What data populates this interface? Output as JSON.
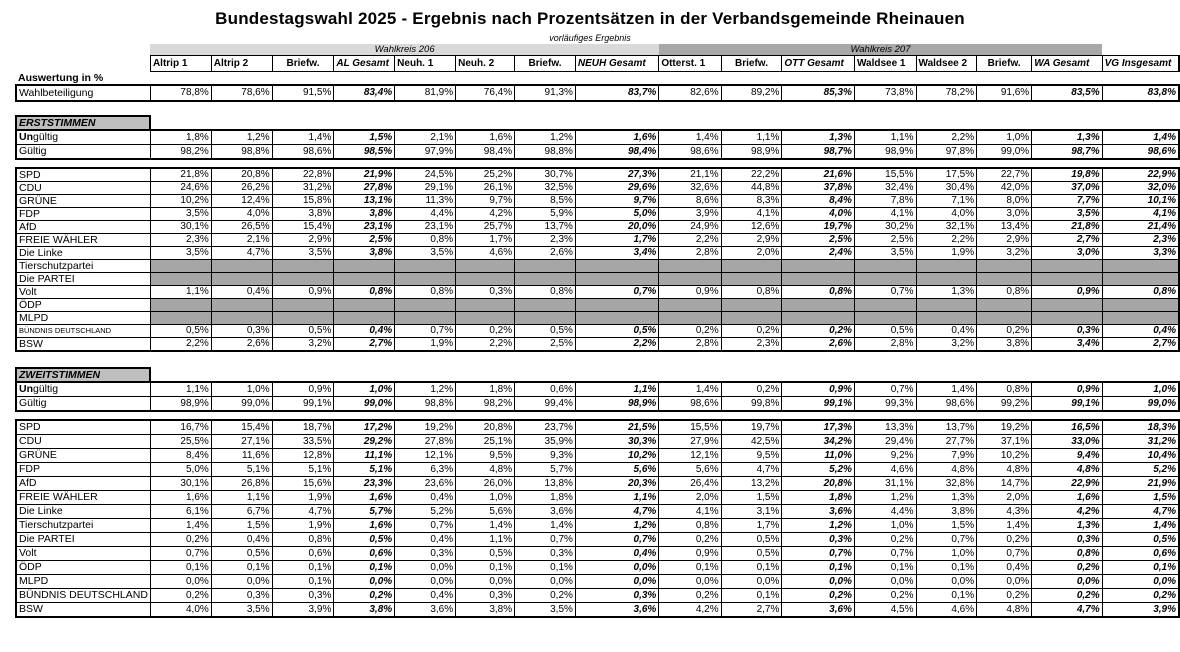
{
  "title": "Bundestagswahl 2025 - Ergebnis nach Prozentsätzen  in der Verbandsgemeinde Rheinauen",
  "subtitle": "vorläufiges Ergebnis",
  "eval_label": "Auswertung in %",
  "colors": {
    "band_206_bg": "#d9d9d9",
    "band_207_bg": "#a8a8a8",
    "section_header_bg": "#bfbfbf",
    "empty_row_bg": "#a6a6a6",
    "border": "#000000"
  },
  "bands": [
    {
      "label": "Wahlkreis 206",
      "span": 8,
      "bg": "#d9d9d9"
    },
    {
      "label": "Wahlkreis 207",
      "span": 7,
      "bg": "#a8a8a8"
    }
  ],
  "columns": [
    "Altrip 1",
    "Altrip 2",
    "Briefw.",
    "AL Gesamt",
    "Neuh. 1",
    "Neuh. 2",
    "Briefw.",
    "NEUH Gesamt",
    "Otterst. 1",
    "Briefw.",
    "OTT Gesamt",
    "Waldsee 1",
    "Waldsee 2",
    "Briefw.",
    "WA Gesamt",
    "VG Insgesamt"
  ],
  "total_columns": [
    3,
    7,
    10,
    14,
    15
  ],
  "participation": {
    "label": "Wahlbeteiligung",
    "values": [
      "78,8%",
      "78,6%",
      "91,5%",
      "83,4%",
      "81,9%",
      "76,4%",
      "91,3%",
      "83,7%",
      "82,6%",
      "89,2%",
      "85,3%",
      "73,8%",
      "78,2%",
      "91,6%",
      "83,5%",
      "83,8%"
    ]
  },
  "sections": [
    {
      "header": "ERSTSTIMMEN",
      "validity": [
        {
          "label": "Ungültig",
          "bold_prefix": "Un",
          "values": [
            "1,8%",
            "1,2%",
            "1,4%",
            "1,5%",
            "2,1%",
            "1,6%",
            "1,2%",
            "1,6%",
            "1,4%",
            "1,1%",
            "1,3%",
            "1,1%",
            "2,2%",
            "1,0%",
            "1,3%",
            "1,4%"
          ]
        },
        {
          "label": "Gültig",
          "values": [
            "98,2%",
            "98,8%",
            "98,6%",
            "98,5%",
            "97,9%",
            "98,4%",
            "98,8%",
            "98,4%",
            "98,6%",
            "98,9%",
            "98,7%",
            "98,9%",
            "97,8%",
            "99,0%",
            "98,7%",
            "98,6%"
          ]
        }
      ],
      "parties": [
        {
          "label": "SPD",
          "values": [
            "21,8%",
            "20,8%",
            "22,8%",
            "21,9%",
            "24,5%",
            "25,2%",
            "30,7%",
            "27,3%",
            "21,1%",
            "22,2%",
            "21,6%",
            "15,5%",
            "17,5%",
            "22,7%",
            "19,8%",
            "22,9%"
          ]
        },
        {
          "label": "CDU",
          "values": [
            "24,6%",
            "26,2%",
            "31,2%",
            "27,8%",
            "29,1%",
            "26,1%",
            "32,5%",
            "29,6%",
            "32,6%",
            "44,8%",
            "37,8%",
            "32,4%",
            "30,4%",
            "42,0%",
            "37,0%",
            "32,0%"
          ]
        },
        {
          "label": "GRÜNE",
          "values": [
            "10,2%",
            "12,4%",
            "15,8%",
            "13,1%",
            "11,3%",
            "9,7%",
            "8,5%",
            "9,7%",
            "8,6%",
            "8,3%",
            "8,4%",
            "7,8%",
            "7,1%",
            "8,0%",
            "7,7%",
            "10,1%"
          ]
        },
        {
          "label": "FDP",
          "values": [
            "3,5%",
            "4,0%",
            "3,8%",
            "3,8%",
            "4,4%",
            "4,2%",
            "5,9%",
            "5,0%",
            "3,9%",
            "4,1%",
            "4,0%",
            "4,1%",
            "4,0%",
            "3,0%",
            "3,5%",
            "4,1%"
          ]
        },
        {
          "label": "AfD",
          "values": [
            "30,1%",
            "26,5%",
            "15,4%",
            "23,1%",
            "23,1%",
            "25,7%",
            "13,7%",
            "20,0%",
            "24,9%",
            "12,6%",
            "19,7%",
            "30,2%",
            "32,1%",
            "13,4%",
            "21,8%",
            "21,4%"
          ]
        },
        {
          "label": "FREIE WÄHLER",
          "values": [
            "2,3%",
            "2,1%",
            "2,9%",
            "2,5%",
            "0,8%",
            "1,7%",
            "2,3%",
            "1,7%",
            "2,2%",
            "2,9%",
            "2,5%",
            "2,5%",
            "2,2%",
            "2,9%",
            "2,7%",
            "2,3%"
          ]
        },
        {
          "label": "Die Linke",
          "values": [
            "3,5%",
            "4,7%",
            "3,5%",
            "3,8%",
            "3,5%",
            "4,6%",
            "2,6%",
            "3,4%",
            "2,8%",
            "2,0%",
            "2,4%",
            "3,5%",
            "1,9%",
            "3,2%",
            "3,0%",
            "3,3%"
          ]
        },
        {
          "label": "Tierschutzpartei",
          "empty": true
        },
        {
          "label": "Die PARTEI",
          "empty": true
        },
        {
          "label": "Volt",
          "values": [
            "1,1%",
            "0,4%",
            "0,9%",
            "0,8%",
            "0,8%",
            "0,3%",
            "0,8%",
            "0,7%",
            "0,9%",
            "0,8%",
            "0,8%",
            "0,7%",
            "1,3%",
            "0,8%",
            "0,9%",
            "0,8%"
          ]
        },
        {
          "label": "ÖDP",
          "empty": true
        },
        {
          "label": "MLPD",
          "empty": true
        },
        {
          "label": "BÜNDNIS DEUTSCHLAND",
          "small": true,
          "values": [
            "0,5%",
            "0,3%",
            "0,5%",
            "0,4%",
            "0,7%",
            "0,2%",
            "0,5%",
            "0,5%",
            "0,2%",
            "0,2%",
            "0,2%",
            "0,5%",
            "0,4%",
            "0,2%",
            "0,3%",
            "0,4%"
          ]
        },
        {
          "label": "BSW",
          "values": [
            "2,2%",
            "2,6%",
            "3,2%",
            "2,7%",
            "1,9%",
            "2,2%",
            "2,5%",
            "2,2%",
            "2,8%",
            "2,3%",
            "2,6%",
            "2,8%",
            "3,2%",
            "3,8%",
            "3,4%",
            "2,7%"
          ]
        }
      ]
    },
    {
      "header": "ZWEITSTIMMEN",
      "validity": [
        {
          "label": "Ungültig",
          "bold_prefix": "Un",
          "values": [
            "1,1%",
            "1,0%",
            "0,9%",
            "1,0%",
            "1,2%",
            "1,8%",
            "0,6%",
            "1,1%",
            "1,4%",
            "0,2%",
            "0,9%",
            "0,7%",
            "1,4%",
            "0,8%",
            "0,9%",
            "1,0%"
          ]
        },
        {
          "label": "Gültig",
          "values": [
            "98,9%",
            "99,0%",
            "99,1%",
            "99,0%",
            "98,8%",
            "98,2%",
            "99,4%",
            "98,9%",
            "98,6%",
            "99,8%",
            "99,1%",
            "99,3%",
            "98,6%",
            "99,2%",
            "99,1%",
            "99,0%"
          ]
        }
      ],
      "parties": [
        {
          "label": "SPD",
          "values": [
            "16,7%",
            "15,4%",
            "18,7%",
            "17,2%",
            "19,2%",
            "20,8%",
            "23,7%",
            "21,5%",
            "15,5%",
            "19,7%",
            "17,3%",
            "13,3%",
            "13,7%",
            "19,2%",
            "16,5%",
            "18,3%"
          ]
        },
        {
          "label": "CDU",
          "values": [
            "25,5%",
            "27,1%",
            "33,5%",
            "29,2%",
            "27,8%",
            "25,1%",
            "35,9%",
            "30,3%",
            "27,9%",
            "42,5%",
            "34,2%",
            "29,4%",
            "27,7%",
            "37,1%",
            "33,0%",
            "31,2%"
          ]
        },
        {
          "label": "GRÜNE",
          "values": [
            "8,4%",
            "11,6%",
            "12,8%",
            "11,1%",
            "12,1%",
            "9,5%",
            "9,3%",
            "10,2%",
            "12,1%",
            "9,5%",
            "11,0%",
            "9,2%",
            "7,9%",
            "10,2%",
            "9,4%",
            "10,4%"
          ]
        },
        {
          "label": "FDP",
          "values": [
            "5,0%",
            "5,1%",
            "5,1%",
            "5,1%",
            "6,3%",
            "4,8%",
            "5,7%",
            "5,6%",
            "5,6%",
            "4,7%",
            "5,2%",
            "4,6%",
            "4,8%",
            "4,8%",
            "4,8%",
            "5,2%"
          ]
        },
        {
          "label": "AfD",
          "values": [
            "30,1%",
            "26,8%",
            "15,6%",
            "23,3%",
            "23,6%",
            "26,0%",
            "13,8%",
            "20,3%",
            "26,4%",
            "13,2%",
            "20,8%",
            "31,1%",
            "32,8%",
            "14,7%",
            "22,9%",
            "21,9%"
          ]
        },
        {
          "label": "FREIE WÄHLER",
          "values": [
            "1,6%",
            "1,1%",
            "1,9%",
            "1,6%",
            "0,4%",
            "1,0%",
            "1,8%",
            "1,1%",
            "2,0%",
            "1,5%",
            "1,8%",
            "1,2%",
            "1,3%",
            "2,0%",
            "1,6%",
            "1,5%"
          ]
        },
        {
          "label": "Die Linke",
          "values": [
            "6,1%",
            "6,7%",
            "4,7%",
            "5,7%",
            "5,2%",
            "5,6%",
            "3,6%",
            "4,7%",
            "4,1%",
            "3,1%",
            "3,6%",
            "4,4%",
            "3,8%",
            "4,3%",
            "4,2%",
            "4,7%"
          ]
        },
        {
          "label": "Tierschutzpartei",
          "values": [
            "1,4%",
            "1,5%",
            "1,9%",
            "1,6%",
            "0,7%",
            "1,4%",
            "1,4%",
            "1,2%",
            "0,8%",
            "1,7%",
            "1,2%",
            "1,0%",
            "1,5%",
            "1,4%",
            "1,3%",
            "1,4%"
          ]
        },
        {
          "label": "Die PARTEI",
          "values": [
            "0,2%",
            "0,4%",
            "0,8%",
            "0,5%",
            "0,4%",
            "1,1%",
            "0,7%",
            "0,7%",
            "0,2%",
            "0,5%",
            "0,3%",
            "0,2%",
            "0,7%",
            "0,2%",
            "0,3%",
            "0,5%"
          ]
        },
        {
          "label": "Volt",
          "values": [
            "0,7%",
            "0,5%",
            "0,6%",
            "0,6%",
            "0,3%",
            "0,5%",
            "0,3%",
            "0,4%",
            "0,9%",
            "0,5%",
            "0,7%",
            "0,7%",
            "1,0%",
            "0,7%",
            "0,8%",
            "0,6%"
          ]
        },
        {
          "label": "ÖDP",
          "values": [
            "0,1%",
            "0,1%",
            "0,1%",
            "0,1%",
            "0,0%",
            "0,1%",
            "0,1%",
            "0,0%",
            "0,1%",
            "0,1%",
            "0,1%",
            "0,1%",
            "0,1%",
            "0,4%",
            "0,2%",
            "0,1%"
          ]
        },
        {
          "label": "MLPD",
          "values": [
            "0,0%",
            "0,0%",
            "0,1%",
            "0,0%",
            "0,0%",
            "0,0%",
            "0,0%",
            "0,0%",
            "0,0%",
            "0,0%",
            "0,0%",
            "0,0%",
            "0,0%",
            "0,0%",
            "0,0%",
            "0,0%"
          ]
        },
        {
          "label": "BÜNDNIS DEUTSCHLAND",
          "values": [
            "0,2%",
            "0,3%",
            "0,3%",
            "0,2%",
            "0,4%",
            "0,3%",
            "0,2%",
            "0,3%",
            "0,2%",
            "0,1%",
            "0,2%",
            "0,2%",
            "0,1%",
            "0,2%",
            "0,2%",
            "0,2%"
          ]
        },
        {
          "label": "BSW",
          "values": [
            "4,0%",
            "3,5%",
            "3,9%",
            "3,8%",
            "3,6%",
            "3,8%",
            "3,5%",
            "3,6%",
            "4,2%",
            "2,7%",
            "3,6%",
            "4,5%",
            "4,6%",
            "4,8%",
            "4,7%",
            "3,9%"
          ]
        }
      ]
    }
  ]
}
